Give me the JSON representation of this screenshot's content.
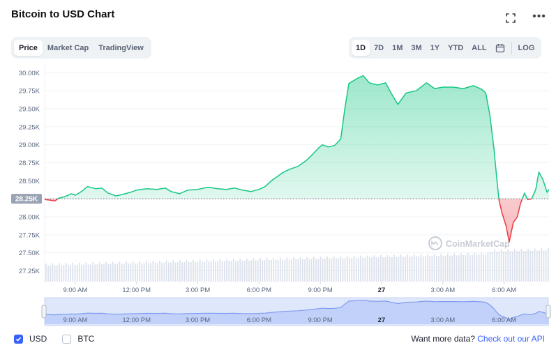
{
  "title": "Bitcoin to USD Chart",
  "header_icons": [
    "expand-icon",
    "more-icon"
  ],
  "more_label": "•••",
  "view_tabs": [
    {
      "label": "Price",
      "active": true
    },
    {
      "label": "Market Cap",
      "active": false
    },
    {
      "label": "TradingView",
      "active": false
    }
  ],
  "range_tabs": [
    {
      "label": "1D",
      "active": true
    },
    {
      "label": "7D",
      "active": false
    },
    {
      "label": "1M",
      "active": false
    },
    {
      "label": "3M",
      "active": false
    },
    {
      "label": "1Y",
      "active": false
    },
    {
      "label": "YTD",
      "active": false
    },
    {
      "label": "ALL",
      "active": false
    }
  ],
  "log_label": "LOG",
  "colors": {
    "up": "#16c784",
    "down": "#ea3943",
    "brand": "#3861fb",
    "axis_text": "#58667e",
    "volume": "#cfd6e4"
  },
  "watermark": "CoinMarketCap",
  "current_price_label": "28.25K",
  "navigator": {
    "x_ticks": [
      "9:00 AM",
      "12:00 PM",
      "3:00 PM",
      "6:00 PM",
      "9:00 PM",
      "27",
      "3:00 AM",
      "6:00 AM"
    ]
  },
  "footer": {
    "currencies": [
      {
        "label": "USD",
        "checked": true
      },
      {
        "label": "BTC",
        "checked": false
      }
    ],
    "promo_text": "Want more data?",
    "promo_link": "Check out our API"
  },
  "chart_data": {
    "type": "area",
    "baseline": 28250,
    "ylim": [
      27100,
      30100
    ],
    "y_ticks": [
      {
        "label": "30.00K",
        "value": 30000
      },
      {
        "label": "29.75K",
        "value": 29750
      },
      {
        "label": "29.50K",
        "value": 29500
      },
      {
        "label": "29.25K",
        "value": 29250
      },
      {
        "label": "29.00K",
        "value": 29000
      },
      {
        "label": "28.75K",
        "value": 28750
      },
      {
        "label": "28.50K",
        "value": 28500
      },
      {
        "label": "28.25K",
        "value": 28250
      },
      {
        "label": "28.00K",
        "value": 28000
      },
      {
        "label": "27.75K",
        "value": 27750
      },
      {
        "label": "27.50K",
        "value": 27500
      },
      {
        "label": "27.25K",
        "value": 27250
      }
    ],
    "x_ticks": [
      {
        "label": "9:00 AM",
        "hour": 9,
        "bold": false
      },
      {
        "label": "12:00 PM",
        "hour": 12,
        "bold": false
      },
      {
        "label": "3:00 PM",
        "hour": 15,
        "bold": false
      },
      {
        "label": "6:00 PM",
        "hour": 18,
        "bold": false
      },
      {
        "label": "9:00 PM",
        "hour": 21,
        "bold": false
      },
      {
        "label": "27",
        "hour": 24,
        "bold": true
      },
      {
        "label": "3:00 AM",
        "hour": 27,
        "bold": false
      },
      {
        "label": "6:00 AM",
        "hour": 30,
        "bold": false
      }
    ],
    "x_range_hours": [
      7.5,
      32.2
    ],
    "series": [
      {
        "values_by_hour": [
          [
            7.5,
            28240
          ],
          [
            7.8,
            28230
          ],
          [
            8.0,
            28220
          ],
          [
            8.2,
            28260
          ],
          [
            8.5,
            28280
          ],
          [
            8.8,
            28320
          ],
          [
            9.0,
            28300
          ],
          [
            9.3,
            28350
          ],
          [
            9.6,
            28420
          ],
          [
            10.0,
            28390
          ],
          [
            10.3,
            28400
          ],
          [
            10.6,
            28330
          ],
          [
            11.0,
            28290
          ],
          [
            11.3,
            28310
          ],
          [
            11.7,
            28340
          ],
          [
            12.0,
            28370
          ],
          [
            12.5,
            28390
          ],
          [
            13.0,
            28380
          ],
          [
            13.4,
            28400
          ],
          [
            13.7,
            28350
          ],
          [
            14.1,
            28320
          ],
          [
            14.5,
            28370
          ],
          [
            15.0,
            28380
          ],
          [
            15.5,
            28410
          ],
          [
            16.0,
            28390
          ],
          [
            16.4,
            28380
          ],
          [
            16.8,
            28400
          ],
          [
            17.2,
            28370
          ],
          [
            17.6,
            28350
          ],
          [
            18.0,
            28380
          ],
          [
            18.3,
            28420
          ],
          [
            18.6,
            28500
          ],
          [
            18.9,
            28560
          ],
          [
            19.2,
            28620
          ],
          [
            19.5,
            28660
          ],
          [
            19.9,
            28700
          ],
          [
            20.3,
            28780
          ],
          [
            20.6,
            28860
          ],
          [
            20.9,
            28950
          ],
          [
            21.1,
            29000
          ],
          [
            21.4,
            28970
          ],
          [
            21.7,
            28990
          ],
          [
            22.0,
            29080
          ],
          [
            22.2,
            29500
          ],
          [
            22.4,
            29850
          ],
          [
            22.8,
            29920
          ],
          [
            23.1,
            29960
          ],
          [
            23.4,
            29860
          ],
          [
            23.8,
            29830
          ],
          [
            24.2,
            29860
          ],
          [
            24.5,
            29700
          ],
          [
            24.8,
            29560
          ],
          [
            25.2,
            29720
          ],
          [
            25.7,
            29750
          ],
          [
            26.2,
            29860
          ],
          [
            26.6,
            29780
          ],
          [
            27.0,
            29800
          ],
          [
            27.5,
            29800
          ],
          [
            28.0,
            29780
          ],
          [
            28.5,
            29820
          ],
          [
            28.9,
            29770
          ],
          [
            29.1,
            29720
          ],
          [
            29.3,
            29420
          ],
          [
            29.5,
            28950
          ],
          [
            29.65,
            28500
          ],
          [
            29.75,
            28230
          ],
          [
            29.9,
            28050
          ],
          [
            30.1,
            27870
          ],
          [
            30.25,
            27650
          ],
          [
            30.45,
            27920
          ],
          [
            30.65,
            28000
          ],
          [
            30.8,
            28180
          ],
          [
            31.0,
            28330
          ],
          [
            31.15,
            28240
          ],
          [
            31.35,
            28250
          ],
          [
            31.55,
            28380
          ],
          [
            31.7,
            28620
          ],
          [
            31.9,
            28520
          ],
          [
            32.1,
            28340
          ],
          [
            32.2,
            28380
          ]
        ]
      }
    ]
  }
}
